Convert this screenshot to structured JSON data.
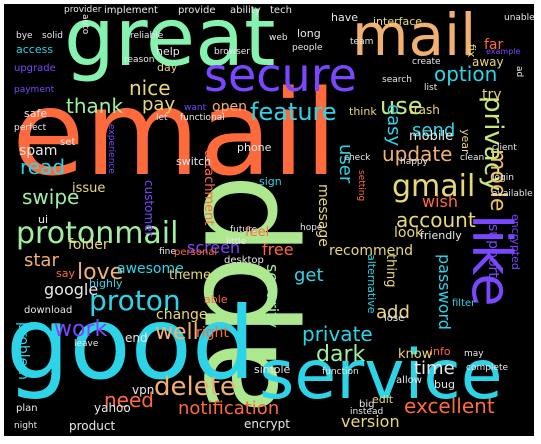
{
  "words": [
    {
      "text": "email",
      "color": "#ff6a3d"
    },
    {
      "text": "app",
      "color": "#aee88e"
    },
    {
      "text": "good",
      "color": "#2dd4e8"
    },
    {
      "text": "great",
      "color": "#86f2b0"
    },
    {
      "text": "service",
      "color": "#2dd4e8"
    },
    {
      "text": "mail",
      "color": "#f0b070"
    },
    {
      "text": "secure",
      "color": "#7a47ff"
    },
    {
      "text": "like",
      "color": "#7a47ff"
    },
    {
      "text": "protonmail",
      "color": "#a0eea0"
    },
    {
      "text": "gmail",
      "color": "#e8d878"
    },
    {
      "text": "delete",
      "color": "#f0b070"
    },
    {
      "text": "proton",
      "color": "#2dd4e8"
    },
    {
      "text": "feature",
      "color": "#2dd4e8"
    },
    {
      "text": "use",
      "color": "#c8e87a"
    },
    {
      "text": "love",
      "color": "#f0b070"
    },
    {
      "text": "work",
      "color": "#7a47ff"
    },
    {
      "text": "privacy",
      "color": "#c8e87a"
    },
    {
      "text": "mode",
      "color": "#f0c060"
    },
    {
      "text": "dark",
      "color": "#a0eea0"
    },
    {
      "text": "update",
      "color": "#f0b070"
    },
    {
      "text": "excellent",
      "color": "#ff6a3d"
    },
    {
      "text": "need",
      "color": "#ff6a3d"
    },
    {
      "text": "notification",
      "color": "#ff6a3d"
    },
    {
      "text": "account",
      "color": "#e8d878"
    },
    {
      "text": "private",
      "color": "#2dd4e8"
    },
    {
      "text": "time",
      "color": "#e8e8e8"
    },
    {
      "text": "well",
      "color": "#f0b070"
    },
    {
      "text": "swipe",
      "color": "#a0eea0"
    },
    {
      "text": "read",
      "color": "#2dd4e8"
    },
    {
      "text": "thank",
      "color": "#a0eea0"
    },
    {
      "text": "nice",
      "color": "#e8d878"
    },
    {
      "text": "pay",
      "color": "#e8d878"
    },
    {
      "text": "option",
      "color": "#2dd4e8"
    },
    {
      "text": "send",
      "color": "#2dd4e8"
    },
    {
      "text": "easy",
      "color": "#2dd4e8"
    },
    {
      "text": "user",
      "color": "#2dd4e8"
    },
    {
      "text": "google",
      "color": "#e8e8e8"
    },
    {
      "text": "star",
      "color": "#f0b070"
    },
    {
      "text": "spam",
      "color": "#e8e8e8"
    },
    {
      "text": "free",
      "color": "#ff6a3d"
    },
    {
      "text": "get",
      "color": "#2dd4e8"
    },
    {
      "text": "add",
      "color": "#e8d878"
    },
    {
      "text": "version",
      "color": "#e8d878"
    },
    {
      "text": "password",
      "color": "#2dd4e8"
    },
    {
      "text": "security",
      "color": "#a0eea0"
    },
    {
      "text": "support",
      "color": "#7a47ff"
    },
    {
      "text": "screen",
      "color": "#7a47ff"
    },
    {
      "text": "recommend",
      "color": "#e8d878"
    },
    {
      "text": "message",
      "color": "#e8d878"
    },
    {
      "text": "wish",
      "color": "#ff6a3d"
    },
    {
      "text": "look",
      "color": "#e8d878"
    },
    {
      "text": "try",
      "color": "#e8d878"
    },
    {
      "text": "far",
      "color": "#ff6a3d"
    },
    {
      "text": "awesome",
      "color": "#2dd4e8"
    },
    {
      "text": "change",
      "color": "#e8d878"
    },
    {
      "text": "theme",
      "color": "#e8d878"
    },
    {
      "text": "folder",
      "color": "#e8d878"
    },
    {
      "text": "issue",
      "color": "#e8d878"
    },
    {
      "text": "know",
      "color": "#e8d878"
    },
    {
      "text": "problem",
      "color": "#2dd4e8"
    },
    {
      "text": "mobile",
      "color": "#e8e8e8"
    },
    {
      "text": "trash",
      "color": "#e8d878"
    },
    {
      "text": "open",
      "color": "#f0b070"
    },
    {
      "text": "thing",
      "color": "#e8d878"
    },
    {
      "text": "attachment",
      "color": "#ff6a3d"
    },
    {
      "text": "customer",
      "color": "#7a47ff"
    },
    {
      "text": "right",
      "color": "#ff6a3d"
    },
    {
      "text": "feel",
      "color": "#ff6a3d"
    },
    {
      "text": "end",
      "color": "#e8e8e8"
    },
    {
      "text": "vpn",
      "color": "#e8e8e8"
    },
    {
      "text": "yahoo",
      "color": "#e8e8e8"
    },
    {
      "text": "product",
      "color": "#e8e8e8"
    },
    {
      "text": "encrypt",
      "color": "#e8e8e8"
    },
    {
      "text": "edit",
      "color": "#e8d878"
    },
    {
      "text": "bug",
      "color": "#e8e8e8"
    },
    {
      "text": "simple",
      "color": "#e8e8e8"
    },
    {
      "text": "info",
      "color": "#ff6a3d"
    },
    {
      "text": "phone",
      "color": "#e8e8e8"
    },
    {
      "text": "encrypted",
      "color": "#7a47ff"
    },
    {
      "text": "think",
      "color": "#e8d878"
    },
    {
      "text": "year",
      "color": "#e8d878"
    },
    {
      "text": "ui",
      "color": "#e8e8e8"
    },
    {
      "text": "highly",
      "color": "#2dd4e8"
    },
    {
      "text": "fix",
      "color": "#e8d878"
    },
    {
      "text": "away",
      "color": "#e8d878"
    },
    {
      "text": "interface",
      "color": "#e8d878"
    },
    {
      "text": "have",
      "color": "#e8e8e8"
    },
    {
      "text": "long",
      "color": "#e8e8e8"
    },
    {
      "text": "help",
      "color": "#e8e8e8"
    },
    {
      "text": "day",
      "color": "#e8d878"
    },
    {
      "text": "safe",
      "color": "#e8e8e8"
    },
    {
      "text": "access",
      "color": "#2dd4e8"
    },
    {
      "text": "upgrade",
      "color": "#7a47ff"
    },
    {
      "text": "implement",
      "color": "#e8e8e8"
    },
    {
      "text": "provide",
      "color": "#e8e8e8"
    },
    {
      "text": "ability",
      "color": "#e8e8e8"
    },
    {
      "text": "tech",
      "color": "#e8e8e8"
    },
    {
      "text": "alternative",
      "color": "#2dd4e8"
    },
    {
      "text": "sign",
      "color": "#2dd4e8"
    },
    {
      "text": "switch",
      "color": "#e8e8e8"
    },
    {
      "text": "friendly",
      "color": "#e8e8e8"
    },
    {
      "text": "able",
      "color": "#ff6a3d"
    },
    {
      "text": "download",
      "color": "#e8e8e8"
    },
    {
      "text": "set",
      "color": "#e8e8e8"
    },
    {
      "text": "say",
      "color": "#ff6a3d"
    },
    {
      "text": "personal",
      "color": "#ff6a3d"
    },
    {
      "text": "desktop",
      "color": "#e8e8e8"
    },
    {
      "text": "filter",
      "color": "#2dd4e8"
    },
    {
      "text": "lose",
      "color": "#e8e8e8"
    },
    {
      "text": "allow",
      "color": "#e8e8e8"
    },
    {
      "text": "big",
      "color": "#e8e8e8"
    },
    {
      "text": "plan",
      "color": "#e8e8e8"
    },
    {
      "text": "night",
      "color": "#e8e8e8"
    },
    {
      "text": "instead",
      "color": "#e8e8e8"
    },
    {
      "text": "complete",
      "color": "#e8e8e8"
    },
    {
      "text": "future",
      "color": "#e8e8e8"
    },
    {
      "text": "fine",
      "color": "#e8e8e8"
    },
    {
      "text": "little",
      "color": "#e8e8e8"
    },
    {
      "text": "clean",
      "color": "#e8e8e8"
    },
    {
      "text": "available",
      "color": "#e8e8e8"
    },
    {
      "text": "happy",
      "color": "#e8e8e8"
    },
    {
      "text": "check",
      "color": "#e8e8e8"
    },
    {
      "text": "client",
      "color": "#e8e8e8"
    },
    {
      "text": "web",
      "color": "#e8e8e8"
    },
    {
      "text": "browser",
      "color": "#e8e8e8"
    },
    {
      "text": "reliable",
      "color": "#e8e8e8"
    },
    {
      "text": "people",
      "color": "#e8e8e8"
    },
    {
      "text": "create",
      "color": "#e8e8e8"
    },
    {
      "text": "list",
      "color": "#e8e8e8"
    },
    {
      "text": "team",
      "color": "#e8e8e8"
    },
    {
      "text": "search",
      "color": "#e8e8e8"
    },
    {
      "text": "solid",
      "color": "#e8e8e8"
    },
    {
      "text": "bye",
      "color": "#e8e8e8"
    },
    {
      "text": "payment",
      "color": "#7a47ff"
    },
    {
      "text": "perfect",
      "color": "#e8e8e8"
    },
    {
      "text": "provider",
      "color": "#e8e8e8"
    },
    {
      "text": "functional",
      "color": "#e8e8e8"
    },
    {
      "text": "reason",
      "color": "#e8e8e8"
    },
    {
      "text": "experience",
      "color": "#7a47ff"
    },
    {
      "text": "want",
      "color": "#7a47ff"
    },
    {
      "text": "let",
      "color": "#e8e8e8"
    },
    {
      "text": "unable",
      "color": "#e8e8e8"
    },
    {
      "text": "auto",
      "color": "#e8e8e8"
    },
    {
      "text": "example",
      "color": "#7a47ff"
    },
    {
      "text": "login",
      "color": "#e8e8e8"
    },
    {
      "text": "setting",
      "color": "#ff6a3d"
    },
    {
      "text": "hope",
      "color": "#e8e8e8"
    },
    {
      "text": "leave",
      "color": "#e8e8e8"
    },
    {
      "text": "may",
      "color": "#e8e8e8"
    },
    {
      "text": "function",
      "color": "#e8e8e8"
    },
    {
      "text": "ad",
      "color": "#e8e8e8"
    }
  ]
}
